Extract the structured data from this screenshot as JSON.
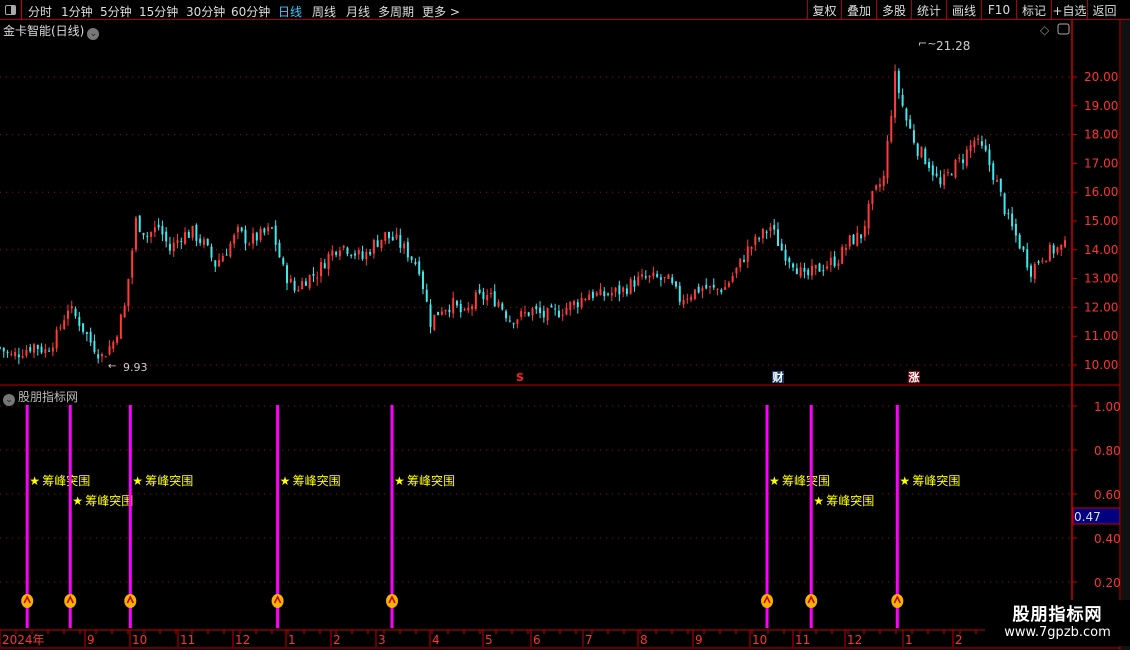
{
  "toolbar": {
    "periods": [
      "分时",
      "1分钟",
      "5分钟",
      "15分钟",
      "30分钟",
      "60分钟",
      "日线",
      "周线",
      "月线",
      "多周期",
      "更多 >"
    ],
    "active_period": "日线",
    "right_buttons": [
      "复权",
      "叠加",
      "多股",
      "统计",
      "画线",
      "F10",
      "标记",
      "+自选",
      "返回"
    ]
  },
  "main": {
    "title": "金卡智能(日线)",
    "high_label": "21.28",
    "low_label": "9.93",
    "price_ticks": [
      "20.00",
      "19.00",
      "18.00",
      "17.00",
      "16.00",
      "15.00",
      "14.00",
      "13.00",
      "12.00",
      "11.00",
      "10.00"
    ],
    "markers": [
      {
        "text": "S",
        "color": "#ff2020"
      },
      {
        "text": "财",
        "color": "#ffffff",
        "bg": "#123a6a"
      },
      {
        "text": "涨",
        "color": "#ffffff",
        "bg": "#7a0010"
      }
    ],
    "up_color": "#ff3b3b",
    "down_color": "#40e8f0",
    "closes": [
      10.6,
      10.3,
      10.5,
      10.7,
      10.5,
      11.0,
      12.0,
      11.5,
      10.8,
      10.3,
      10.8,
      12.0,
      15.0,
      14.5,
      14.8,
      14.0,
      14.5,
      14.6,
      14.2,
      13.5,
      14.0,
      14.6,
      14.3,
      14.5,
      14.7,
      13.3,
      12.6,
      13.0,
      13.2,
      13.8,
      14.2,
      14.0,
      13.7,
      14.2,
      14.5,
      14.3,
      13.9,
      13.4,
      11.5,
      12.0,
      12.1,
      11.7,
      12.3,
      12.4,
      12.2,
      11.6,
      11.7,
      11.9,
      11.7,
      11.8,
      12.0,
      12.2,
      12.5,
      12.4,
      12.5,
      12.6,
      12.9,
      13.0,
      13.0,
      12.9,
      12.3,
      12.5,
      12.7,
      12.6,
      12.7,
      13.3,
      14.0,
      14.4,
      14.8,
      14.0,
      13.6,
      13.0,
      13.3,
      13.5,
      13.7,
      14.3,
      14.5,
      15.8,
      16.5,
      20.0,
      18.5,
      17.5,
      17.0,
      16.2,
      16.8,
      17.2,
      17.8,
      17.3,
      16.3,
      15.0,
      14.2,
      13.3,
      13.8,
      14.0,
      14.1
    ]
  },
  "indicator": {
    "title": "股朋指标网",
    "ticks": [
      "1.00",
      "0.80",
      "0.60",
      "0.40",
      "0.20"
    ],
    "current_value": "0.47",
    "signal_label": "筹峰突围",
    "signal_color": "#ff00ff",
    "label_color": "#ffff00",
    "signal_indices": [
      2.4,
      6.2,
      11.5,
      24.5,
      34.6,
      67.7,
      71.6,
      79.2
    ]
  },
  "time_axis": {
    "labels": [
      "2024年",
      "9",
      "10",
      "11",
      "12",
      "1",
      "2",
      "3",
      "4",
      "5",
      "6",
      "7",
      "8",
      "9",
      "10",
      "11",
      "12",
      "1",
      "2"
    ]
  },
  "watermark": {
    "line1": "股朋指标网",
    "line2": "www.7gpzb.com"
  }
}
